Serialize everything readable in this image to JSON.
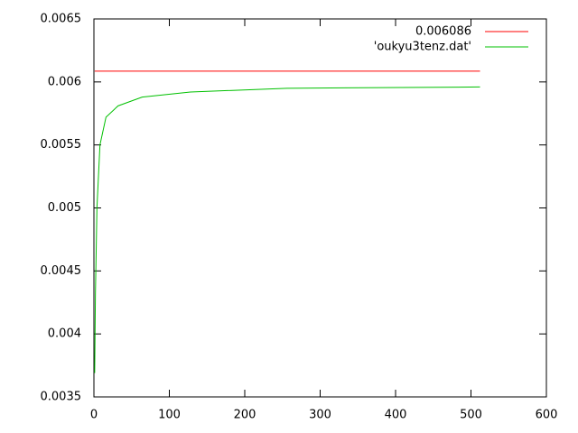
{
  "chart_data": {
    "type": "line",
    "xlim": [
      0,
      600
    ],
    "xticks": [
      0,
      100,
      200,
      300,
      400,
      500,
      600
    ],
    "ylim": [
      0.0035,
      0.0065
    ],
    "yticks": [
      0.0035,
      0.004,
      0.0045,
      0.005,
      0.0055,
      0.006,
      0.0065
    ],
    "legend": "top-right",
    "series": [
      {
        "name": "0.006086",
        "color": "#ff0000",
        "x": [
          1,
          512
        ],
        "values": [
          0.006086,
          0.006086
        ]
      },
      {
        "name": "'oukyu3tenz.dat'",
        "color": "#00c000",
        "x": [
          1,
          2,
          4,
          8,
          16,
          32,
          64,
          128,
          256,
          512
        ],
        "values": [
          0.00369,
          0.00432,
          0.005,
          0.0055,
          0.00572,
          0.00581,
          0.00588,
          0.00592,
          0.00595,
          0.00596
        ]
      }
    ]
  }
}
